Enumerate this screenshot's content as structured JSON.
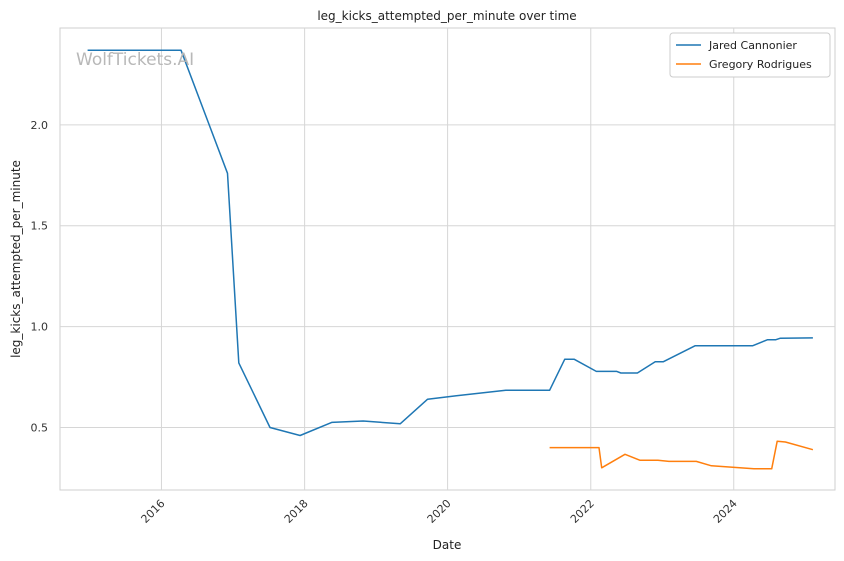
{
  "chart_data": {
    "type": "line",
    "title": "leg_kicks_attempted_per_minute over time",
    "xlabel": "Date",
    "ylabel": "leg_kicks_attempted_per_minute",
    "watermark": "WolfTickets.AI",
    "x_ticks": [
      "2016",
      "2018",
      "2020",
      "2022",
      "2024"
    ],
    "y_ticks": [
      "0.5",
      "1.0",
      "1.5",
      "2.0"
    ],
    "xlim": [
      "2014-08-01",
      "2025-06-01"
    ],
    "ylim": [
      0.19,
      2.48
    ],
    "grid": true,
    "legend_position": "top-right",
    "series": [
      {
        "name": "Jared Cannonier",
        "color": "#1f77b4",
        "points": [
          [
            "2014-12-20",
            2.37
          ],
          [
            "2016-04-10",
            2.37
          ],
          [
            "2016-12-03",
            1.76
          ],
          [
            "2017-01-30",
            0.82
          ],
          [
            "2017-07-08",
            0.5
          ],
          [
            "2017-12-09",
            0.46
          ],
          [
            "2018-05-19",
            0.525
          ],
          [
            "2018-10-27",
            0.532
          ],
          [
            "2019-05-04",
            0.518
          ],
          [
            "2019-09-21",
            0.64
          ],
          [
            "2020-02-15",
            0.657
          ],
          [
            "2020-10-24",
            0.684
          ],
          [
            "2021-06-05",
            0.684
          ],
          [
            "2021-08-21",
            0.838
          ],
          [
            "2021-10-09",
            0.838
          ],
          [
            "2022-01-29",
            0.778
          ],
          [
            "2022-05-14",
            0.778
          ],
          [
            "2022-06-04",
            0.77
          ],
          [
            "2022-08-27",
            0.77
          ],
          [
            "2022-11-26",
            0.826
          ],
          [
            "2023-01-07",
            0.826
          ],
          [
            "2023-06-17",
            0.905
          ],
          [
            "2024-04-06",
            0.905
          ],
          [
            "2024-06-22",
            0.935
          ],
          [
            "2024-08-03",
            0.935
          ],
          [
            "2024-08-24",
            0.942
          ],
          [
            "2025-02-08",
            0.944
          ]
        ]
      },
      {
        "name": "Gregory Rodrigues",
        "color": "#ff7f0e",
        "points": [
          [
            "2021-06-05",
            0.4
          ],
          [
            "2022-02-12",
            0.4
          ],
          [
            "2022-02-26",
            0.3
          ],
          [
            "2022-06-25",
            0.367
          ],
          [
            "2022-09-10",
            0.337
          ],
          [
            "2022-12-10",
            0.337
          ],
          [
            "2023-02-04",
            0.332
          ],
          [
            "2023-06-24",
            0.332
          ],
          [
            "2023-09-09",
            0.31
          ],
          [
            "2024-04-13",
            0.295
          ],
          [
            "2024-07-13",
            0.295
          ],
          [
            "2024-08-10",
            0.432
          ],
          [
            "2024-09-21",
            0.428
          ],
          [
            "2025-02-08",
            0.39
          ]
        ]
      }
    ]
  }
}
